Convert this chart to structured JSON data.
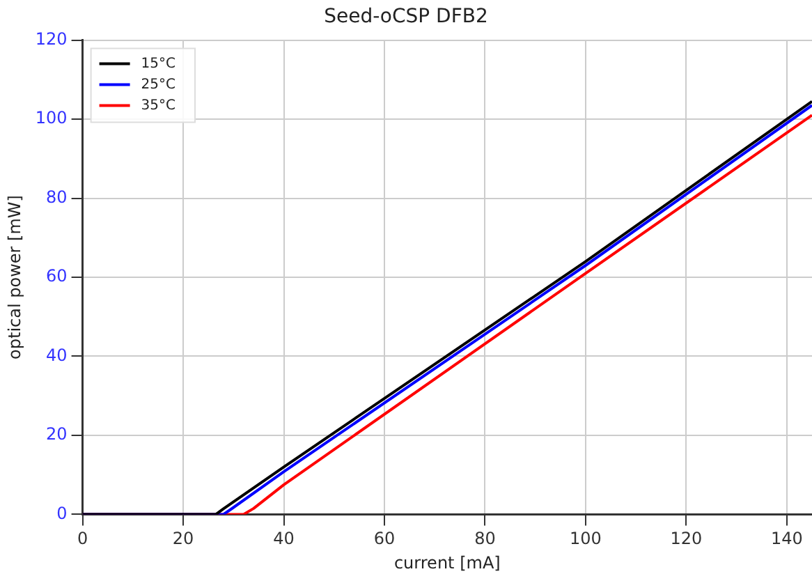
{
  "chart_data": {
    "type": "line",
    "title": "Seed-oCSP DFB2",
    "xlabel": "current [mA]",
    "ylabel": "optical power [mW]",
    "xlim": [
      0,
      145
    ],
    "xticks": [
      0,
      20,
      40,
      60,
      80,
      100,
      120,
      140
    ],
    "ylim": [
      0,
      120
    ],
    "yticks": [
      0,
      20,
      40,
      60,
      80,
      100,
      120
    ],
    "grid": true,
    "legend": "top left",
    "marker": "none",
    "line_style": "solid",
    "series": [
      {
        "name": "15°C",
        "color": "#000000",
        "x": [
          0,
          26.5,
          28,
          40,
          100,
          145
        ],
        "values": [
          0,
          0,
          1.4,
          12,
          64,
          104.5
        ]
      },
      {
        "name": "25°C",
        "color": "#0000ff",
        "x": [
          0,
          28,
          29.5,
          40,
          100,
          145
        ],
        "values": [
          0,
          0,
          1.3,
          10.8,
          63,
          103.5
        ]
      },
      {
        "name": "35°C",
        "color": "#ff0000",
        "x": [
          0,
          32,
          34,
          40,
          100,
          145
        ],
        "values": [
          0,
          0,
          1.5,
          7.5,
          61,
          101
        ]
      }
    ]
  }
}
